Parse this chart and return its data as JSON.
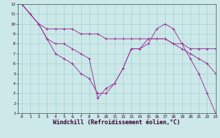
{
  "xlabel": "Windchill (Refroidissement éolien,°C)",
  "bg_color": "#cce8e8",
  "grid_color": "#aad4d4",
  "line_color": "#993399",
  "line1_x": [
    0,
    1,
    2,
    3,
    4,
    5,
    6,
    7,
    8,
    9,
    10,
    11,
    12,
    13,
    14,
    15,
    16,
    17,
    18,
    19,
    20,
    21,
    22,
    23
  ],
  "line1_y": [
    12,
    11,
    10,
    8.5,
    7,
    6.5,
    6,
    5,
    4.5,
    3,
    3,
    4,
    5.5,
    7.5,
    7.5,
    8,
    9.5,
    10,
    9.5,
    8,
    6.5,
    5,
    3,
    1
  ],
  "line2_x": [
    0,
    2,
    3,
    4,
    5,
    6,
    7,
    8,
    9,
    10,
    11,
    12,
    13,
    14,
    15,
    16,
    17,
    18,
    19,
    20,
    21,
    22,
    23
  ],
  "line2_y": [
    12,
    10,
    8.5,
    8,
    8,
    7.5,
    7,
    6.5,
    2.5,
    3.5,
    4,
    5.5,
    7.5,
    7.5,
    8.5,
    8.5,
    8.5,
    8,
    7.5,
    7,
    6.5,
    6,
    5
  ],
  "line3_x": [
    0,
    2,
    3,
    4,
    5,
    6,
    7,
    8,
    9,
    10,
    11,
    12,
    13,
    14,
    15,
    16,
    17,
    18,
    19,
    20,
    21,
    22,
    23
  ],
  "line3_y": [
    12,
    10,
    9.5,
    9.5,
    9.5,
    9.5,
    9,
    9,
    9,
    8.5,
    8.5,
    8.5,
    8.5,
    8.5,
    8.5,
    8.5,
    8.5,
    8,
    8,
    7.5,
    7.5,
    7.5,
    7.5
  ],
  "xlim": [
    -0.5,
    23
  ],
  "ylim": [
    1,
    12
  ],
  "xticks": [
    0,
    1,
    2,
    3,
    4,
    5,
    6,
    7,
    8,
    9,
    10,
    11,
    12,
    13,
    14,
    15,
    16,
    17,
    18,
    19,
    20,
    21,
    22,
    23
  ],
  "yticks": [
    1,
    2,
    3,
    4,
    5,
    6,
    7,
    8,
    9,
    10,
    11,
    12
  ],
  "tick_fontsize": 4.5,
  "xlabel_fontsize": 6,
  "marker_size": 2.5,
  "line_width": 0.7
}
